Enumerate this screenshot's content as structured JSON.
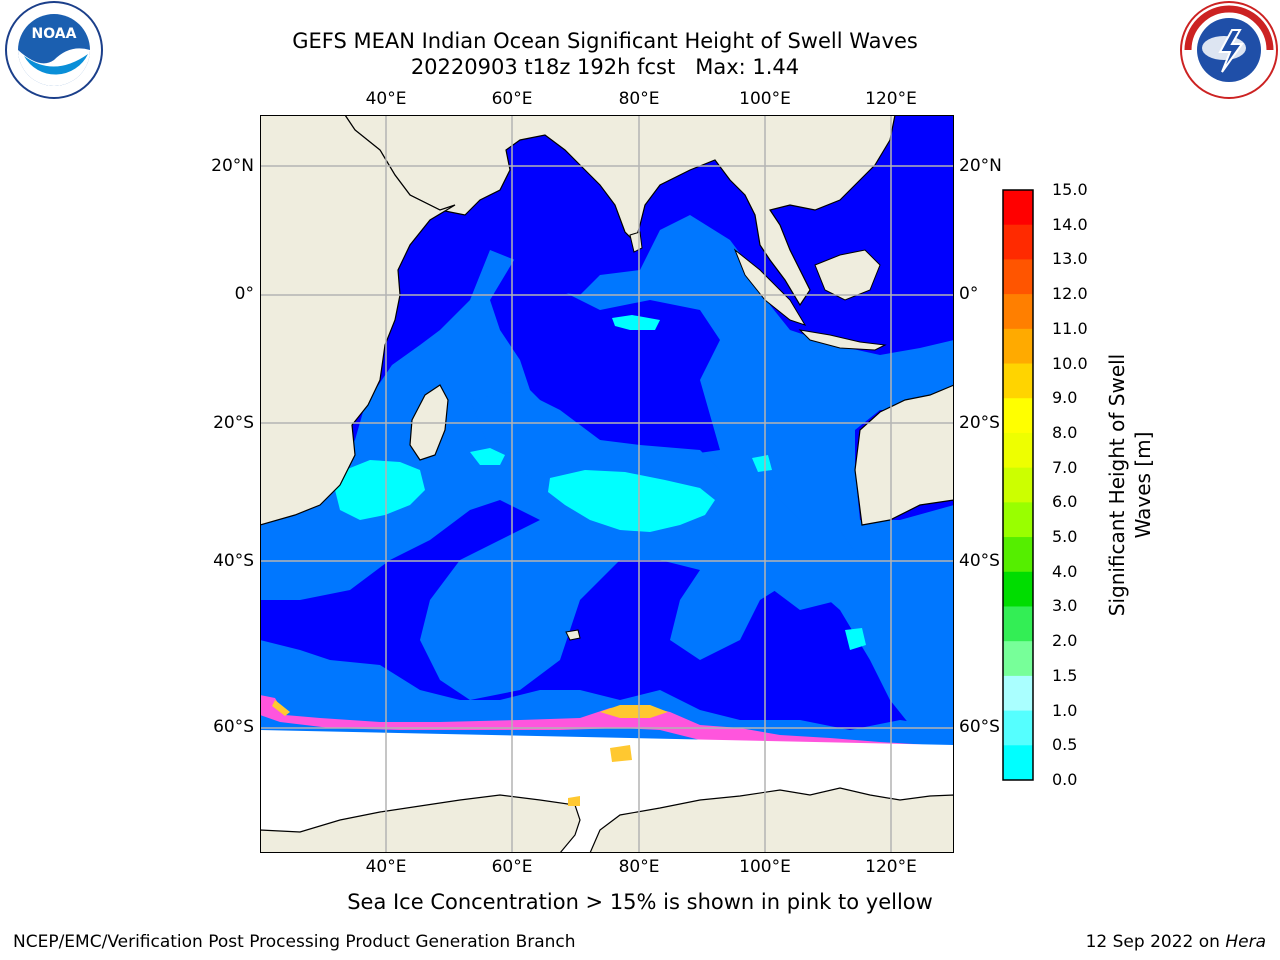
{
  "title": {
    "line1": "GEFS MEAN Indian Ocean Significant Height of Swell Waves",
    "line2": "20220903 t18z 192h fcst   Max: 1.44"
  },
  "map": {
    "lon_ticks": [
      "40°E",
      "60°E",
      "80°E",
      "100°E",
      "120°E"
    ],
    "lat_ticks": [
      "20°N",
      "0°",
      "20°S",
      "40°S",
      "60°S"
    ],
    "colors": {
      "land": "#efedde",
      "ocean_low": "#0000ff",
      "ocean_mid": "#0077ff",
      "ocean_high": "#00ffff",
      "ice_pink": "#ff55dd",
      "ice_yellow": "#ffc830",
      "grid": "#b4b4b4"
    }
  },
  "colorbar": {
    "ticks": [
      "15.0",
      "14.0",
      "13.0",
      "12.0",
      "11.0",
      "10.0",
      "9.0",
      "8.0",
      "7.0",
      "6.0",
      "5.0",
      "4.0",
      "3.0",
      "2.0",
      "1.5",
      "1.0",
      "0.5",
      "0.0"
    ],
    "colors": [
      "#ff0000",
      "#ff2a00",
      "#ff5500",
      "#ff7f00",
      "#ffaa00",
      "#ffd400",
      "#ffff00",
      "#eeff00",
      "#ccff00",
      "#99ff00",
      "#55ee00",
      "#00dd00",
      "#33ee55",
      "#77ff99",
      "#aaffff",
      "#55ffff",
      "#00ffff",
      "#0077ff",
      "#0000ff"
    ],
    "label": "Significant Height of Swell Waves [m]",
    "label_line1": "Significant Height of Swell",
    "label_line2": "Waves [m]"
  },
  "caption": "Sea Ice Concentration > 15% is shown in pink to yellow",
  "footer": {
    "left": "NCEP/EMC/Verification Post Processing Product Generation Branch",
    "right_date": "12 Sep 2022 on ",
    "right_host": "Hera"
  },
  "logos": {
    "noaa": "NOAA",
    "noaa_ring": "NATIONAL OCEANIC AND ATMOSPHERIC ADMINISTRATION · U.S. DEPARTMENT OF COMMERCE",
    "nws_ring": "NATIONAL WEATHER SERVICE"
  }
}
